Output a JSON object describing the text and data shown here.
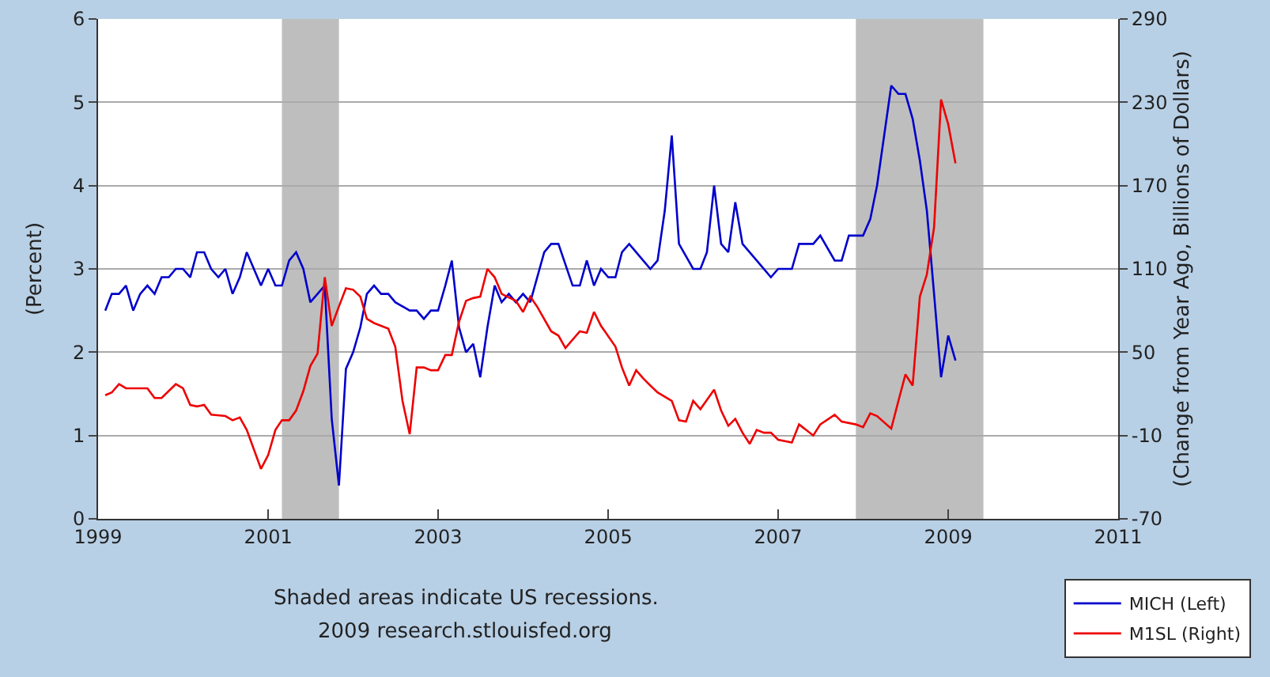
{
  "chart_data": {
    "type": "line",
    "ylabel": "(Percent)",
    "y2label": "(Change from Year Ago, Billions of Dollars)",
    "xlim": [
      "1999-01",
      "2011-01"
    ],
    "xticks": [
      {
        "value": "1999-01",
        "label": "1999"
      },
      {
        "value": "2001-01",
        "label": "2001"
      },
      {
        "value": "2003-01",
        "label": "2003"
      },
      {
        "value": "2005-01",
        "label": "2005"
      },
      {
        "value": "2007-01",
        "label": "2007"
      },
      {
        "value": "2009-01",
        "label": "2009"
      },
      {
        "value": "2011-01",
        "label": "2011"
      }
    ],
    "ylim": [
      0,
      6
    ],
    "yticks": [
      0,
      1,
      2,
      3,
      4,
      5,
      6
    ],
    "y2lim": [
      -70,
      290
    ],
    "y2ticks": [
      -70,
      -10,
      50,
      110,
      170,
      230,
      290
    ],
    "grid": "y",
    "legend": "bottom right",
    "bands": [
      {
        "axis": "x",
        "from": "2001-03",
        "to": "2001-11",
        "color": "#bebebe"
      },
      {
        "axis": "x",
        "from": "2007-12",
        "to": "2009-06",
        "color": "#bebebe"
      }
    ],
    "annotations": [
      "Shaded areas indicate US recessions.",
      "2009 research.stlouisfed.org"
    ],
    "series": [
      {
        "name": "MICH (Left)",
        "color": "#0000cc",
        "x": [
          "1999-02",
          "1999-03",
          "1999-04",
          "1999-05",
          "1999-06",
          "1999-07",
          "1999-08",
          "1999-09",
          "1999-10",
          "1999-11",
          "1999-12",
          "2000-01",
          "2000-02",
          "2000-03",
          "2000-04",
          "2000-05",
          "2000-06",
          "2000-07",
          "2000-08",
          "2000-09",
          "2000-10",
          "2000-12",
          "2001-01",
          "2001-02",
          "2001-03",
          "2001-04",
          "2001-05",
          "2001-06",
          "2001-07",
          "2001-09",
          "2001-10",
          "2001-11",
          "2001-12",
          "2002-01",
          "2002-02",
          "2002-03",
          "2002-04",
          "2002-05",
          "2002-06",
          "2002-07",
          "2002-09",
          "2002-10",
          "2002-11",
          "2002-12",
          "2003-01",
          "2003-02",
          "2003-03",
          "2003-04",
          "2003-05",
          "2003-06",
          "2003-07",
          "2003-08",
          "2003-09",
          "2003-10",
          "2003-11",
          "2003-12",
          "2004-01",
          "2004-02",
          "2004-04",
          "2004-05",
          "2004-06",
          "2004-08",
          "2004-09",
          "2004-10",
          "2004-11",
          "2004-12",
          "2005-01",
          "2005-02",
          "2005-03",
          "2005-04",
          "2005-05",
          "2005-07",
          "2005-08",
          "2005-09",
          "2005-10",
          "2005-11",
          "2006-01",
          "2006-02",
          "2006-03",
          "2006-04",
          "2006-05",
          "2006-06",
          "2006-07",
          "2006-08",
          "2006-10",
          "2006-12",
          "2007-01",
          "2007-03",
          "2007-04",
          "2007-06",
          "2007-07",
          "2007-09",
          "2007-10",
          "2007-11",
          "2008-01",
          "2008-02",
          "2008-03",
          "2008-05",
          "2008-06",
          "2008-07",
          "2008-08",
          "2008-09",
          "2008-10",
          "2008-11",
          "2008-12",
          "2009-01",
          "2009-02"
        ],
        "values": [
          2.5,
          2.7,
          2.7,
          2.8,
          2.5,
          2.7,
          2.8,
          2.7,
          2.9,
          2.9,
          3.0,
          3.0,
          2.9,
          3.2,
          3.2,
          3.0,
          2.9,
          3.0,
          2.7,
          2.9,
          3.2,
          2.8,
          3.0,
          2.8,
          2.8,
          3.1,
          3.2,
          3.0,
          2.6,
          2.8,
          1.2,
          0.4,
          1.8,
          2.0,
          2.3,
          2.7,
          2.8,
          2.7,
          2.7,
          2.6,
          2.5,
          2.5,
          2.4,
          2.5,
          2.5,
          2.8,
          3.1,
          2.3,
          2.0,
          2.1,
          1.7,
          2.3,
          2.8,
          2.6,
          2.7,
          2.6,
          2.7,
          2.6,
          3.2,
          3.3,
          3.3,
          2.8,
          2.8,
          3.1,
          2.8,
          3.0,
          2.9,
          2.9,
          3.2,
          3.3,
          3.2,
          3.0,
          3.1,
          3.7,
          4.6,
          3.3,
          3.0,
          3.0,
          3.2,
          4.0,
          3.3,
          3.2,
          3.8,
          3.3,
          3.1,
          2.9,
          3.0,
          3.0,
          3.3,
          3.3,
          3.4,
          3.1,
          3.1,
          3.4,
          3.4,
          3.6,
          4.0,
          5.2,
          5.1,
          5.1,
          4.8,
          4.3,
          3.7,
          2.7,
          1.7,
          2.2,
          1.9
        ]
      },
      {
        "name": "M1SL (Right)",
        "color": "#ee0000",
        "axis": "y2",
        "x": [
          "1999-02",
          "1999-03",
          "1999-04",
          "1999-05",
          "1999-06",
          "1999-08",
          "1999-09",
          "1999-10",
          "1999-12",
          "2000-01",
          "2000-02",
          "2000-03",
          "2000-04",
          "2000-05",
          "2000-07",
          "2000-08",
          "2000-09",
          "2000-10",
          "2000-12",
          "2001-01",
          "2001-02",
          "2001-03",
          "2001-04",
          "2001-05",
          "2001-06",
          "2001-07",
          "2001-08",
          "2001-09",
          "2001-10",
          "2001-11",
          "2001-12",
          "2002-01",
          "2002-02",
          "2002-03",
          "2002-04",
          "2002-06",
          "2002-07",
          "2002-08",
          "2002-09",
          "2002-10",
          "2002-11",
          "2002-12",
          "2003-01",
          "2003-02",
          "2003-03",
          "2003-04",
          "2003-05",
          "2003-06",
          "2003-07",
          "2003-08",
          "2003-09",
          "2003-10",
          "2003-12",
          "2004-01",
          "2004-02",
          "2004-03",
          "2004-05",
          "2004-06",
          "2004-07",
          "2004-09",
          "2004-10",
          "2004-11",
          "2004-12",
          "2005-02",
          "2005-03",
          "2005-04",
          "2005-05",
          "2005-06",
          "2005-07",
          "2005-08",
          "2005-10",
          "2005-11",
          "2005-12",
          "2006-01",
          "2006-02",
          "2006-04",
          "2006-05",
          "2006-06",
          "2006-07",
          "2006-08",
          "2006-09",
          "2006-10",
          "2006-11",
          "2006-12",
          "2007-01",
          "2007-03",
          "2007-04",
          "2007-06",
          "2007-07",
          "2007-09",
          "2007-10",
          "2007-12",
          "2008-01",
          "2008-02",
          "2008-03",
          "2008-05",
          "2008-06",
          "2008-07",
          "2008-08",
          "2008-09",
          "2008-10",
          "2008-11",
          "2008-12",
          "2009-01",
          "2009-02"
        ],
        "values": [
          19,
          21,
          27,
          24,
          24,
          24,
          17,
          17,
          27,
          24,
          12,
          11,
          12,
          5,
          4,
          1,
          3,
          -6,
          -34,
          -24,
          -6,
          1,
          1,
          8,
          22,
          40,
          49,
          104,
          69,
          83,
          96,
          95,
          90,
          74,
          71,
          67,
          54,
          15,
          -9,
          39,
          39,
          37,
          37,
          48,
          48,
          72,
          87,
          89,
          90,
          110,
          104,
          92,
          87,
          79,
          90,
          83,
          65,
          62,
          53,
          65,
          64,
          79,
          69,
          54,
          39,
          26,
          37,
          31,
          26,
          21,
          15,
          1,
          0,
          15,
          9,
          23,
          8,
          -3,
          2,
          -8,
          -16,
          -6,
          -8,
          -8,
          -13,
          -15,
          -2,
          -10,
          -2,
          5,
          0,
          -2,
          -4,
          6,
          4,
          -5,
          15,
          34,
          26,
          90,
          106,
          140,
          232,
          214,
          186
        ]
      }
    ]
  }
}
